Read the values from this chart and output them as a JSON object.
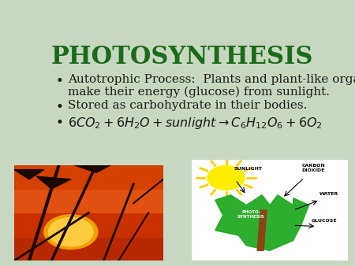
{
  "title": "PHOTOSYNTHESIS",
  "title_color": "#1a6b1a",
  "title_fontsize": 22,
  "bg_color": "#c8d8c0",
  "bullet1_line1": "Autotrophic Process:  Plants and plant-like organisms",
  "bullet1_line2": "make their energy (glucose) from sunlight.",
  "bullet2": "Stored as carbohydrate in their bodies.",
  "text_color": "#1a1a1a",
  "font_size": 11,
  "silhouette_color": "#1a0800",
  "sun_color1": "#f0a000",
  "sun_color2": "#ffcc40",
  "sky_colors": [
    "#b82800",
    "#c83000",
    "#e05010",
    "#d44000"
  ],
  "leaf_color": "#22aa22",
  "stem_color": "#8B4513",
  "diagram_sun_color": "#ffee00",
  "diagram_ray_color": "#ffcc00",
  "label_fs": 4.5
}
